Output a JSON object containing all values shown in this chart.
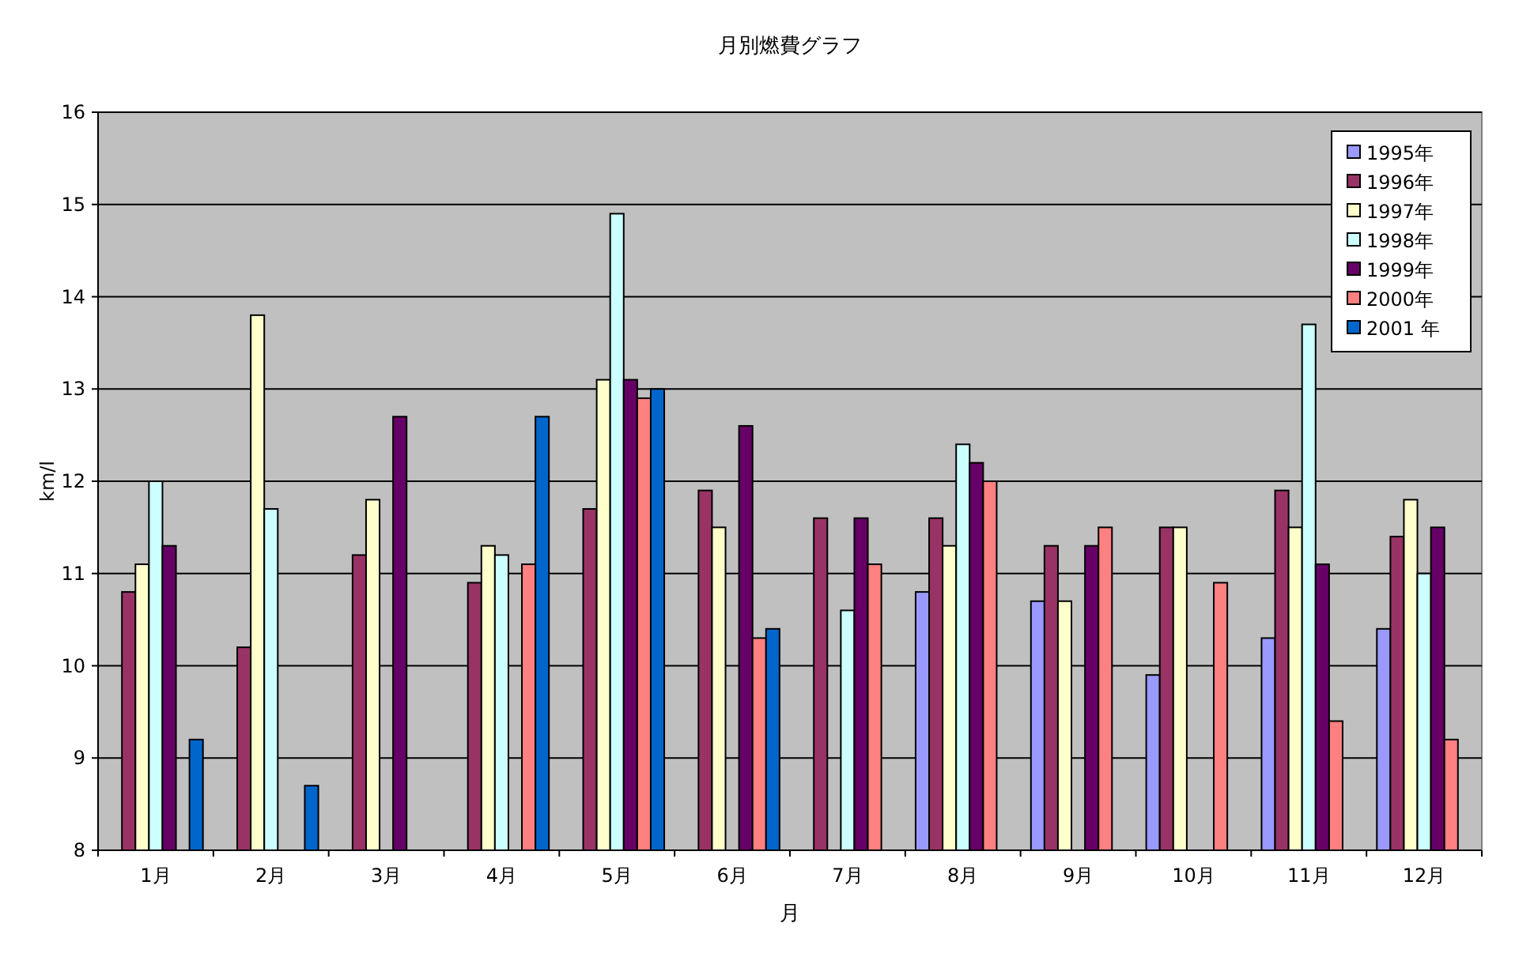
{
  "chart_data": {
    "type": "bar",
    "title": "月別燃費グラフ",
    "xlabel": "月",
    "ylabel": "km/l",
    "categories": [
      "1月",
      "2月",
      "3月",
      "4月",
      "5月",
      "6月",
      "7月",
      "8月",
      "9月",
      "10月",
      "11月",
      "12月"
    ],
    "series": [
      {
        "name": "1995年",
        "color": "#9999ff",
        "values": [
          null,
          null,
          null,
          null,
          null,
          null,
          null,
          10.8,
          10.7,
          9.9,
          10.3,
          10.4
        ]
      },
      {
        "name": "1996年",
        "color": "#993366",
        "values": [
          10.8,
          10.2,
          11.2,
          10.9,
          11.7,
          11.9,
          11.6,
          11.6,
          11.3,
          11.5,
          11.9,
          11.4
        ]
      },
      {
        "name": "1997年",
        "color": "#ffffcc",
        "values": [
          11.1,
          13.8,
          11.8,
          11.3,
          13.1,
          11.5,
          null,
          11.3,
          10.7,
          11.5,
          11.5,
          11.8
        ]
      },
      {
        "name": "1998年",
        "color": "#ccffff",
        "values": [
          12.0,
          11.7,
          null,
          11.2,
          14.9,
          null,
          10.6,
          12.4,
          null,
          null,
          13.7,
          11.0
        ]
      },
      {
        "name": "1999年",
        "color": "#660066",
        "values": [
          11.3,
          null,
          12.7,
          null,
          13.1,
          12.6,
          11.6,
          12.2,
          11.3,
          null,
          11.1,
          11.5
        ]
      },
      {
        "name": "2000年",
        "color": "#ff8080",
        "values": [
          null,
          null,
          null,
          11.1,
          12.9,
          10.3,
          11.1,
          12.0,
          11.5,
          10.9,
          9.4,
          9.2
        ]
      },
      {
        "name": "2001 年",
        "color": "#0066cc",
        "values": [
          9.2,
          8.7,
          null,
          12.7,
          13.0,
          10.4,
          null,
          null,
          null,
          null,
          null,
          null
        ]
      }
    ],
    "ylim": [
      8,
      16
    ],
    "yticks": [
      8,
      9,
      10,
      11,
      12,
      13,
      14,
      15,
      16
    ],
    "grid": "y",
    "legend": "top right"
  }
}
